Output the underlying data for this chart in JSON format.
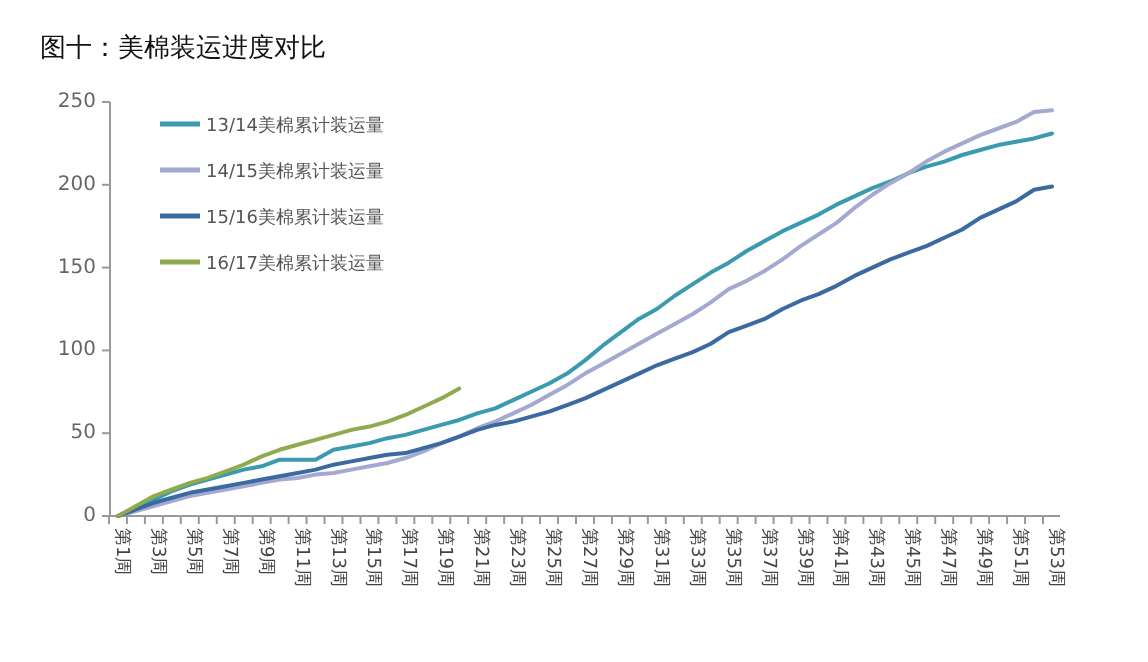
{
  "chart_data": {
    "type": "line",
    "title": "图十：美棉装运进度对比",
    "categories": [
      "第1周",
      null,
      "第3周",
      null,
      "第5周",
      null,
      "第7周",
      null,
      "第9周",
      null,
      "第11周",
      null,
      "第13周",
      null,
      "第15周",
      null,
      "第17周",
      null,
      "第19周",
      null,
      "第21周",
      null,
      "第23周",
      null,
      "第25周",
      null,
      "第27周",
      null,
      "第29周",
      null,
      "第31周",
      null,
      "第33周",
      null,
      "第35周",
      null,
      "第37周",
      null,
      "第39周",
      null,
      "第41周",
      null,
      "第43周",
      null,
      "第45周",
      null,
      "第47周",
      null,
      "第49周",
      null,
      "第51周",
      null,
      "第53周"
    ],
    "series": [
      {
        "name": "13/14美棉累计装运量",
        "color": "#3a9bb0",
        "values": [
          0,
          5,
          10,
          15,
          19,
          22,
          25,
          28,
          30,
          34,
          34,
          34,
          40,
          42,
          44,
          47,
          49,
          52,
          55,
          58,
          62,
          65,
          70,
          75,
          80,
          86,
          94,
          103,
          111,
          119,
          125,
          133,
          140,
          147,
          153,
          160,
          166,
          172,
          177,
          182,
          188,
          193,
          198,
          202,
          207,
          211,
          214,
          218,
          221,
          224,
          226,
          228,
          231
        ]
      },
      {
        "name": "14/15美棉累计装运量",
        "color": "#a3a9d0",
        "values": [
          0,
          3,
          6,
          9,
          12,
          14,
          16,
          18,
          20,
          22,
          23,
          25,
          26,
          28,
          30,
          32,
          35,
          39,
          44,
          48,
          53,
          57,
          62,
          67,
          73,
          79,
          86,
          92,
          98,
          104,
          110,
          116,
          122,
          129,
          137,
          142,
          148,
          155,
          163,
          170,
          177,
          186,
          194,
          201,
          207,
          214,
          220,
          225,
          230,
          234,
          238,
          244,
          245
        ]
      },
      {
        "name": "15/16美棉累计装运量",
        "color": "#3b6aa0",
        "values": [
          0,
          4,
          8,
          11,
          14,
          16,
          18,
          20,
          22,
          24,
          26,
          28,
          31,
          33,
          35,
          37,
          38,
          41,
          44,
          48,
          52,
          55,
          57,
          60,
          63,
          67,
          71,
          76,
          81,
          86,
          91,
          95,
          99,
          104,
          111,
          115,
          119,
          125,
          130,
          134,
          139,
          145,
          150,
          155,
          159,
          163,
          168,
          173,
          180,
          185,
          190,
          197,
          199
        ]
      },
      {
        "name": "16/17美棉累计装运量",
        "color": "#8faa4f",
        "values": [
          0,
          6,
          12,
          16,
          20,
          23,
          27,
          31,
          36,
          40,
          43,
          46,
          49,
          52,
          54,
          57,
          61,
          66,
          71,
          77,
          null,
          null,
          null,
          null,
          null,
          null,
          null,
          null,
          null,
          null,
          null,
          null,
          null,
          null,
          null,
          null,
          null,
          null,
          null,
          null,
          null,
          null,
          null,
          null,
          null,
          null,
          null,
          null,
          null,
          null,
          null,
          null,
          null
        ]
      }
    ],
    "ylim": [
      0,
      250
    ],
    "yticks": [
      0,
      50,
      100,
      150,
      200,
      250
    ],
    "grid": false,
    "legend": "top left",
    "marker": "none",
    "line_style": "solid"
  }
}
